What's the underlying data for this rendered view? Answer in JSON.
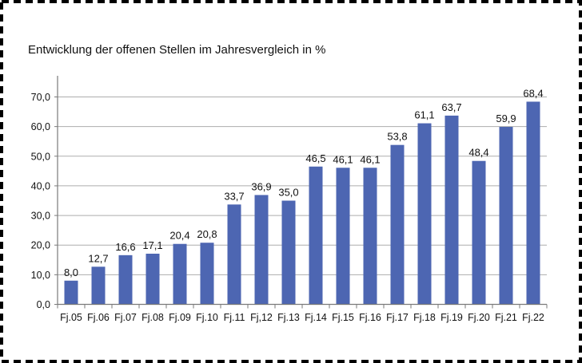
{
  "page": {
    "border_style": "dashed",
    "border_color": "#000000",
    "background": "#ffffff"
  },
  "chart_data": {
    "type": "bar",
    "title": "Entwicklung der offenen Stellen im Jahresvergleich in %",
    "xlabel": "",
    "ylabel": "",
    "categories": [
      "Fj.05",
      "Fj.06",
      "Fj.07",
      "Fj.08",
      "Fj.09",
      "Fj.10",
      "Fj.11",
      "Fj,12",
      "Fj.13",
      "Fj.14",
      "Fj.15",
      "Fj.16",
      "Fj.17",
      "Fj.18",
      "Fj.19",
      "Fj.20",
      "Fj.21",
      "Fj.22"
    ],
    "values": [
      8.0,
      12.7,
      16.6,
      17.1,
      20.4,
      20.8,
      33.7,
      36.9,
      35.0,
      46.5,
      46.1,
      46.1,
      53.8,
      61.1,
      63.7,
      48.4,
      59.9,
      68.4
    ],
    "value_labels": [
      "8,0",
      "12,7",
      "16,6",
      "17,1",
      "20,4",
      "20,8",
      "33,7",
      "36,9",
      "35,0",
      "46,5",
      "46,1",
      "46,1",
      "53,8",
      "61,1",
      "63,7",
      "48,4",
      "59,9",
      "68,4"
    ],
    "ylim": [
      0,
      70
    ],
    "ytick_step": 10,
    "ytick_labels": [
      "0,0",
      "10,0",
      "20,0",
      "30,0",
      "40,0",
      "50,0",
      "60,0",
      "70,0"
    ],
    "grid": "horizontal",
    "legend": "none",
    "colors": {
      "bar": "#4D66B2",
      "gridline": "#ADADAD",
      "axis": "#7A7A7A",
      "text": "#111111"
    }
  }
}
